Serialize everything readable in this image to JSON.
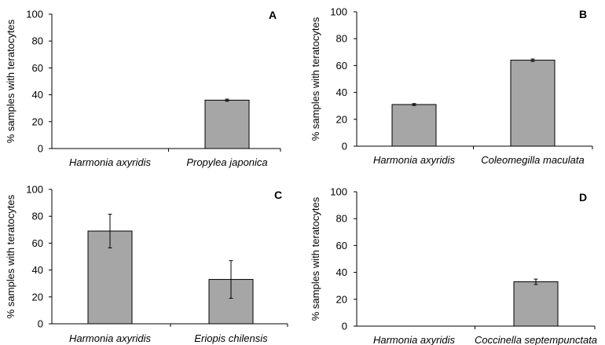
{
  "chart_data": [
    {
      "type": "bar",
      "panel_label": "A",
      "ylabel": "% samples with teratocytes",
      "ylim": [
        0,
        100
      ],
      "yticks": [
        "0",
        "20",
        "40",
        "60",
        "80",
        "100"
      ],
      "categories": [
        "Harmonia axyridis",
        "Propylea japonica"
      ],
      "values": [
        0,
        36
      ],
      "errors": [
        0,
        0.8
      ],
      "bar_color": "#a6a6a6"
    },
    {
      "type": "bar",
      "panel_label": "B",
      "ylabel": "% samples with teratocytes",
      "ylim": [
        0,
        100
      ],
      "yticks": [
        "0",
        "20",
        "40",
        "60",
        "80",
        "100"
      ],
      "categories": [
        "Harmonia axyridis",
        "Coleomegilla maculata"
      ],
      "values": [
        31,
        64
      ],
      "errors": [
        0.7,
        0.9
      ],
      "bar_color": "#a6a6a6"
    },
    {
      "type": "bar",
      "panel_label": "C",
      "ylabel": "% samples with teratocytes",
      "ylim": [
        0,
        100
      ],
      "yticks": [
        "0",
        "20",
        "40",
        "60",
        "80",
        "100"
      ],
      "categories": [
        "Harmonia axyridis",
        "Eriopis chilensis"
      ],
      "values": [
        69,
        33
      ],
      "errors": [
        12.5,
        14
      ],
      "bar_color": "#a6a6a6"
    },
    {
      "type": "bar",
      "panel_label": "D",
      "ylabel": "% samples with teratocytes",
      "ylim": [
        0,
        100
      ],
      "yticks": [
        "0",
        "20",
        "40",
        "60",
        "80",
        "100"
      ],
      "categories": [
        "Harmonia axyridis",
        "Coccinella septempunctata"
      ],
      "values": [
        0,
        33
      ],
      "errors": [
        0,
        2
      ],
      "bar_color": "#a6a6a6"
    }
  ]
}
